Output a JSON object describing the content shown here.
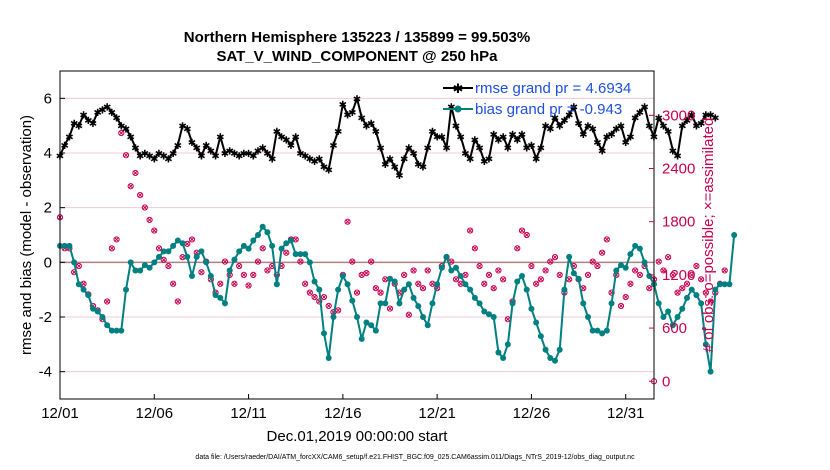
{
  "colors": {
    "rmse": "#000000",
    "bias": "#008080",
    "obs": "#c8004f",
    "zero_line": "#b08080",
    "grid": "#f0c8d8",
    "legend_text": "#1f4fe0"
  },
  "chart_data": {
    "type": "line",
    "title_line1": "Northern Hemisphere 135223 / 135899 = 99.503%",
    "title_line2": "SAT_V_WIND_COMPONENT @ 250 hPa",
    "xlabel": "Dec.01,2019 00:00:00 start",
    "ylabel_left": "rmse and bias (model - observation)",
    "ylabel_right": "# of obs: o=possible; ×=assimilated",
    "footer": "data file: /Users/raeder/DAI/ATM_forcXX/CAM6_setup/f.e21.FHIST_BGC.f09_025.CAM6assim.011/Diags_NTrS_2019-12/obs_diag_output.nc",
    "xlim": [
      0,
      31.5
    ],
    "xticks": [
      0,
      5,
      10,
      15,
      20,
      25,
      30
    ],
    "xtick_labels": [
      "12/01",
      "12/06",
      "12/11",
      "12/16",
      "12/21",
      "12/26",
      "12/31"
    ],
    "ylim_left": [
      -5,
      7
    ],
    "yticks_left": [
      -4,
      -2,
      0,
      2,
      4,
      6
    ],
    "ylim_right": [
      -200,
      3500
    ],
    "yticks_right": [
      0,
      600,
      1200,
      1800,
      2400,
      3000
    ],
    "legend": [
      "rmse grand pr = 4.6934",
      "bias grand pr = -0.943"
    ],
    "series": [
      {
        "name": "rmse",
        "x_start": 0,
        "x_step": 0.25,
        "values": [
          3.9,
          4.3,
          4.6,
          5.1,
          5.0,
          5.4,
          5.2,
          5.1,
          5.5,
          5.6,
          5.7,
          5.5,
          5.3,
          5.0,
          4.9,
          4.6,
          4.2,
          3.9,
          4.0,
          3.9,
          3.8,
          4.0,
          3.9,
          3.8,
          4.0,
          4.3,
          5.0,
          4.9,
          4.4,
          4.2,
          3.9,
          4.3,
          4.1,
          3.9,
          4.6,
          4.0,
          4.1,
          4.0,
          3.9,
          4.0,
          4.0,
          3.9,
          4.1,
          4.2,
          4.0,
          3.8,
          4.8,
          4.6,
          4.5,
          4.3,
          4.6,
          4.0,
          3.9,
          3.8,
          3.7,
          3.8,
          3.5,
          3.4,
          4.3,
          4.8,
          5.8,
          5.4,
          5.5,
          6.0,
          5.3,
          5.0,
          5.1,
          4.8,
          4.2,
          3.6,
          3.8,
          3.5,
          3.2,
          3.8,
          4.2,
          4.0,
          3.6,
          3.5,
          4.2,
          4.8,
          4.6,
          4.6,
          4.2,
          5.7,
          5.0,
          4.6,
          4.0,
          3.8,
          4.5,
          4.2,
          3.7,
          3.8,
          4.7,
          4.5,
          4.6,
          4.2,
          4.7,
          4.5,
          4.7,
          4.2,
          4.3,
          3.8,
          4.2,
          5.0,
          4.9,
          5.3,
          5.0,
          5.2,
          5.4,
          5.7,
          5.1,
          4.7,
          5.0,
          4.9,
          4.4,
          4.1,
          4.6,
          4.7,
          4.9,
          5.0,
          4.4,
          4.6,
          5.3,
          5.5,
          5.7,
          5.0,
          4.6,
          5.3,
          5.0,
          4.8,
          4.1,
          3.9,
          5.0,
          5.2,
          5.4,
          5.0,
          5.1,
          5.4,
          5.4,
          5.3
        ]
      },
      {
        "name": "bias",
        "x_start": 0,
        "x_step": 0.25,
        "values": [
          0.6,
          0.6,
          0.6,
          0.0,
          -0.8,
          -1.0,
          -1.2,
          -1.7,
          -1.8,
          -2.0,
          -2.3,
          -2.5,
          -2.5,
          -2.5,
          -1.0,
          0.0,
          -0.3,
          -0.3,
          -0.1,
          -0.2,
          0.0,
          0.2,
          0.4,
          0.4,
          0.6,
          0.8,
          0.7,
          0.2,
          -0.5,
          0.2,
          0.4,
          0.0,
          -0.5,
          -1.2,
          -1.3,
          -1.5,
          -0.3,
          0.1,
          0.4,
          0.6,
          0.5,
          0.8,
          1.0,
          1.3,
          1.1,
          0.6,
          -0.8,
          0.5,
          0.7,
          0.8,
          0.3,
          0.3,
          0.3,
          0.0,
          -0.7,
          -1.0,
          -2.6,
          -3.5,
          -2.0,
          -1.0,
          -0.5,
          -0.8,
          -1.4,
          -2.0,
          -2.8,
          -2.2,
          -2.3,
          -2.5,
          -1.5,
          -1.5,
          -0.6,
          -0.7,
          -1.5,
          -1.0,
          -0.8,
          -1.3,
          -1.6,
          -2.0,
          -2.3,
          -1.5,
          -0.8,
          -0.2,
          0.2,
          -0.3,
          -0.2,
          -0.5,
          -0.8,
          -1.0,
          -1.3,
          -1.5,
          -1.8,
          -1.9,
          -2.0,
          -3.3,
          -3.5,
          -3.0,
          -1.5,
          -0.7,
          -0.5,
          -1.0,
          -1.7,
          -2.2,
          -2.7,
          -3.2,
          -3.5,
          -3.6,
          -3.2,
          -1.0,
          0.2,
          -0.4,
          -0.6,
          -1.5,
          -2.0,
          -2.5,
          -2.5,
          -2.6,
          -2.5,
          -1.5,
          -0.3,
          -0.1,
          -0.2,
          0.3,
          0.6,
          0.5,
          0.0,
          -0.5,
          -0.8,
          -1.5,
          -2.0,
          -1.8,
          -2.3,
          -2.0,
          -1.7,
          -1.3,
          -1.0,
          -1.2,
          -1.5,
          -3.0,
          -4.0,
          -1.0,
          -0.8,
          -0.8,
          -0.8,
          1.0
        ]
      },
      {
        "name": "obs_possible",
        "axis": "right",
        "x_start": 0,
        "x_step": 0.25,
        "values": [
          1850,
          1500,
          1500,
          1230,
          1300,
          1100,
          980,
          850,
          800,
          700,
          900,
          1500,
          1600,
          2800,
          2550,
          2200,
          2350,
          2100,
          1960,
          1820,
          1700,
          1500,
          1370,
          1300,
          1100,
          900,
          1400,
          1550,
          1600,
          1450,
          1230,
          1350,
          1150,
          1000,
          1100,
          1350,
          1200,
          1100,
          1300,
          1200,
          1080,
          1200,
          1350,
          1500,
          1250,
          1300,
          1200,
          1300,
          1450,
          1600,
          1600,
          1350,
          1100,
          1000,
          950,
          900,
          950,
          850,
          780,
          800,
          1200,
          1800,
          1350,
          1000,
          1200,
          1220,
          1350,
          1050,
          1000,
          1150,
          820,
          1100,
          1000,
          1200,
          750,
          1250,
          1100,
          1050,
          1250,
          1100,
          1050,
          1300,
          1400,
          1350,
          1150,
          1100,
          1200,
          1700,
          1500,
          1300,
          1100,
          1200,
          1050,
          1250,
          1150,
          700,
          900,
          1500,
          1700,
          1650,
          1300,
          1100,
          1150,
          1250,
          1350,
          1400,
          1200,
          1000,
          1150,
          1300,
          1150,
          1050,
          1200,
          1350,
          1300,
          1450,
          1600,
          1000,
          1200,
          850,
          950,
          1100,
          1250,
          1200,
          1300,
          1050,
          1150,
          1350,
          1250,
          1400,
          1200,
          1000,
          1050,
          1100,
          1200,
          1300,
          1150,
          1000,
          900,
          1000,
          1100,
          1250
        ]
      },
      {
        "name": "obs_assimilated",
        "axis": "right",
        "x_start": 0,
        "x_step": 0.25,
        "values": [
          1850,
          1500,
          1500,
          1230,
          1300,
          1100,
          980,
          850,
          800,
          700,
          900,
          1500,
          1600,
          2800,
          2550,
          2200,
          2350,
          2100,
          1960,
          1820,
          1700,
          1500,
          1370,
          1300,
          1100,
          900,
          1400,
          1550,
          1600,
          1450,
          1230,
          1350,
          1150,
          1000,
          1100,
          1350,
          1200,
          1100,
          1300,
          1200,
          1080,
          1200,
          1350,
          1500,
          1250,
          1300,
          1200,
          1300,
          1450,
          1600,
          1600,
          1350,
          1100,
          1000,
          950,
          900,
          950,
          850,
          780,
          800,
          1200,
          1800,
          1350,
          1000,
          1200,
          1220,
          1350,
          1050,
          1000,
          1150,
          820,
          1100,
          1000,
          1200,
          750,
          1250,
          1100,
          1050,
          1250,
          1100,
          1050,
          1300,
          1400,
          1350,
          1150,
          1100,
          1200,
          1700,
          1500,
          1300,
          1100,
          1200,
          1050,
          1250,
          1150,
          700,
          900,
          1500,
          1700,
          1650,
          1300,
          1100,
          1150,
          1250,
          1350,
          1400,
          1200,
          1000,
          1150,
          1300,
          1150,
          1050,
          1200,
          1350,
          1300,
          1450,
          1600,
          1000,
          1200,
          850,
          950,
          1100,
          1250,
          1200,
          1300,
          1050,
          1150,
          1350,
          1250,
          1400,
          1200,
          1000,
          1050,
          1100,
          1200,
          1300,
          1150,
          1000,
          900,
          1000,
          1100,
          1250
        ]
      }
    ]
  }
}
